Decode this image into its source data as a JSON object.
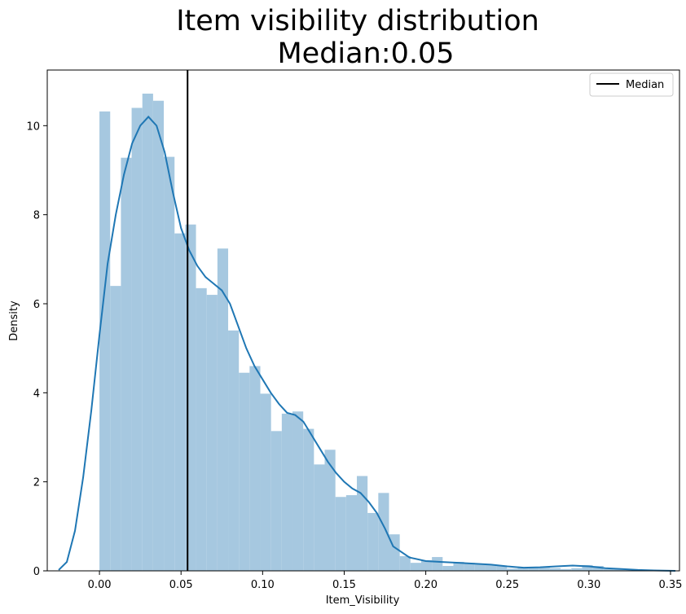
{
  "chart_data": {
    "type": "bar",
    "title": "Item visibility distribution",
    "subtitle": "Median:0.05",
    "xlabel": "Item_Visibility",
    "ylabel": "Density",
    "xlim": [
      -0.032,
      0.3555
    ],
    "ylim": [
      0,
      11.25
    ],
    "x_ticks": [
      "0.00",
      "0.05",
      "0.10",
      "0.15",
      "0.20",
      "0.25",
      "0.30",
      "0.35"
    ],
    "x_tick_values": [
      0,
      0.05,
      0.1,
      0.15,
      0.2,
      0.25,
      0.3,
      0.35
    ],
    "y_ticks": [
      "0",
      "2",
      "4",
      "6",
      "8",
      "10"
    ],
    "y_tick_values": [
      0,
      2,
      4,
      6,
      8,
      10
    ],
    "legend": {
      "label": "Median",
      "placement": "top-right"
    },
    "median": 0.054,
    "histogram": {
      "bin_width": 0.006573,
      "bin_start": 0,
      "values": [
        10.32,
        6.4,
        9.28,
        10.4,
        10.72,
        10.56,
        9.3,
        7.58,
        7.78,
        6.35,
        6.2,
        7.24,
        5.4,
        4.45,
        4.6,
        3.98,
        3.14,
        3.53,
        3.58,
        3.19,
        2.39,
        2.72,
        1.66,
        1.7,
        2.13,
        1.3,
        1.75,
        0.82,
        0.33,
        0.18,
        0.24,
        0.31,
        0.11,
        0.2,
        0.18,
        0.15,
        0.13,
        0.11,
        0.05,
        0.07,
        0.09,
        0.07,
        0.06,
        0.04,
        0.06,
        0.13,
        0.11,
        0.04,
        0.04,
        0.02,
        0.02
      ]
    },
    "kde": {
      "x": [
        -0.025,
        -0.02,
        -0.015,
        -0.01,
        -0.005,
        0,
        0.005,
        0.01,
        0.015,
        0.02,
        0.025,
        0.03,
        0.035,
        0.04,
        0.045,
        0.05,
        0.055,
        0.06,
        0.065,
        0.07,
        0.075,
        0.08,
        0.085,
        0.09,
        0.095,
        0.1,
        0.105,
        0.11,
        0.115,
        0.12,
        0.125,
        0.13,
        0.135,
        0.14,
        0.145,
        0.15,
        0.155,
        0.16,
        0.165,
        0.17,
        0.175,
        0.18,
        0.19,
        0.2,
        0.21,
        0.22,
        0.23,
        0.24,
        0.25,
        0.26,
        0.27,
        0.28,
        0.29,
        0.3,
        0.31,
        0.32,
        0.33,
        0.34,
        0.353
      ],
      "y": [
        0.02,
        0.2,
        0.9,
        2.1,
        3.6,
        5.3,
        6.9,
        8.0,
        8.9,
        9.6,
        10.0,
        10.2,
        10.0,
        9.4,
        8.5,
        7.7,
        7.2,
        6.85,
        6.6,
        6.45,
        6.3,
        6.0,
        5.5,
        5.0,
        4.6,
        4.3,
        4.0,
        3.75,
        3.55,
        3.5,
        3.35,
        3.05,
        2.75,
        2.45,
        2.2,
        2.0,
        1.85,
        1.75,
        1.55,
        1.3,
        0.95,
        0.55,
        0.3,
        0.22,
        0.2,
        0.18,
        0.16,
        0.14,
        0.1,
        0.07,
        0.08,
        0.1,
        0.12,
        0.1,
        0.06,
        0.04,
        0.02,
        0.01,
        0.0
      ]
    },
    "colors": {
      "hist": "#a6c8e0",
      "kde": "#1f77b4",
      "median_line": "#000000"
    }
  }
}
